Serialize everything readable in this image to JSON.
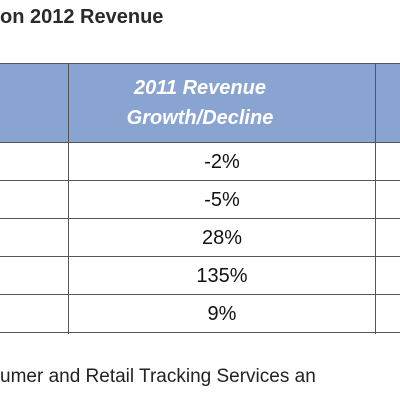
{
  "header": {
    "title": "on 2012 Revenue"
  },
  "table": {
    "column_header": "2011 Revenue Growth/Decline",
    "rows": [
      "-2%",
      "-5%",
      "28%",
      "135%",
      "9%"
    ]
  },
  "footnote": "umer and Retail Tracking Services an"
}
